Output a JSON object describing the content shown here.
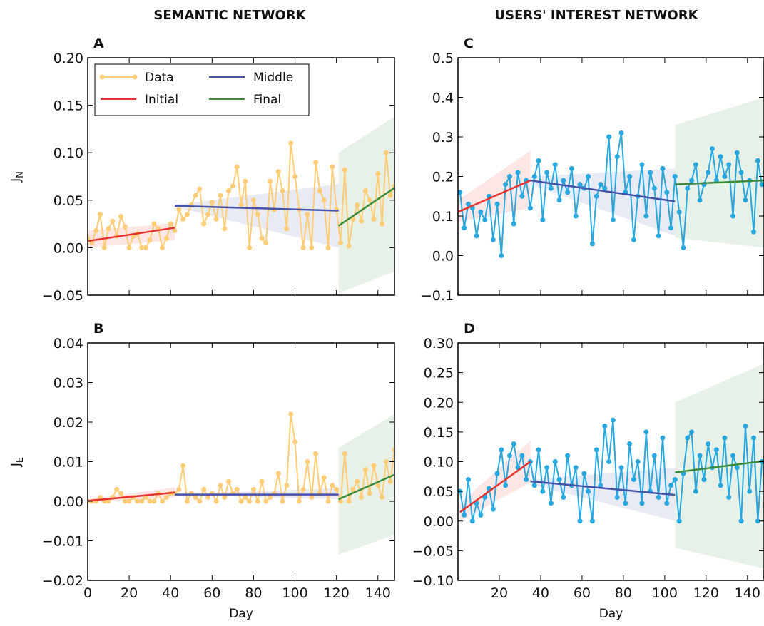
{
  "column_titles": [
    "SEMANTIC NETWORK",
    "USERS' INTEREST NETWORK"
  ],
  "legend": [
    {
      "label": "Data",
      "color": "#ffcc77",
      "marker": true
    },
    {
      "label": "Initial",
      "color": "#e8332f"
    },
    {
      "label": "Middle",
      "color": "#4452a8"
    },
    {
      "label": "Final",
      "color": "#3a8c3a"
    }
  ],
  "chart_data": [
    {
      "panel": "A",
      "type": "line",
      "ylabel": "J",
      "ylabel_sub": "N",
      "xlabel": "",
      "xlim": [
        0,
        148
      ],
      "ylim": [
        -0.05,
        0.2
      ],
      "yticks": [
        -0.05,
        0.0,
        0.05,
        0.1,
        0.15,
        0.2
      ],
      "ytick_labels": [
        "−0.05",
        "0.00",
        "0.05",
        "0.10",
        "0.15",
        "0.20"
      ],
      "xticks": [
        0,
        20,
        40,
        60,
        80,
        100,
        120,
        140
      ],
      "xtick_labels": [
        "",
        "",
        "",
        "",
        "",
        "",
        "",
        ""
      ],
      "data_color": "#ffcc77",
      "data": {
        "x": [
          0,
          2,
          4,
          6,
          8,
          10,
          12,
          14,
          16,
          18,
          20,
          22,
          24,
          26,
          28,
          30,
          32,
          34,
          36,
          38,
          40,
          42,
          44,
          46,
          48,
          50,
          52,
          54,
          56,
          58,
          60,
          62,
          64,
          66,
          68,
          70,
          72,
          74,
          76,
          78,
          80,
          82,
          84,
          86,
          88,
          90,
          92,
          94,
          96,
          98,
          100,
          102,
          104,
          106,
          108,
          110,
          112,
          114,
          116,
          118,
          120,
          122,
          124,
          126,
          128,
          130,
          132,
          134,
          136,
          138,
          140,
          142,
          144,
          146,
          148
        ],
        "y": [
          0.01,
          0.005,
          0.018,
          0.035,
          0.0,
          0.02,
          0.028,
          0.012,
          0.033,
          0.022,
          0.0,
          0.012,
          0.015,
          0.0,
          0.0,
          0.008,
          0.025,
          0.02,
          0.0,
          0.01,
          0.025,
          0.018,
          0.04,
          0.03,
          0.035,
          0.045,
          0.055,
          0.062,
          0.025,
          0.035,
          0.048,
          0.03,
          0.055,
          0.02,
          0.06,
          0.065,
          0.085,
          0.045,
          0.07,
          0.0,
          0.05,
          0.035,
          0.01,
          0.005,
          0.07,
          0.04,
          0.08,
          0.06,
          0.02,
          0.11,
          0.075,
          0.04,
          0.0,
          0.035,
          0.0,
          0.09,
          0.06,
          0.05,
          0.0,
          0.085,
          0.04,
          0.005,
          0.082,
          0.002,
          0.03,
          0.045,
          0.028,
          0.06,
          0.05,
          0.03,
          0.078,
          0.025,
          0.1,
          0.055,
          0.065
        ]
      },
      "segments": [
        {
          "name": "Initial",
          "color": "#e8332f",
          "x": [
            0,
            42
          ],
          "y": [
            0.007,
            0.021
          ],
          "band_upper": [
            0.018,
            0.026
          ],
          "band_lower": [
            0.0,
            0.008
          ]
        },
        {
          "name": "Middle",
          "color": "#4452a8",
          "x": [
            42,
            121
          ],
          "y": [
            0.044,
            0.039
          ],
          "band_upper": [
            0.045,
            0.067
          ],
          "band_lower": [
            0.043,
            0.0
          ]
        },
        {
          "name": "Final",
          "color": "#3a8c3a",
          "x": [
            121,
            148
          ],
          "y": [
            0.023,
            0.063
          ],
          "band_upper": [
            0.1,
            0.138
          ],
          "band_lower": [
            -0.048,
            -0.025
          ]
        }
      ]
    },
    {
      "panel": "B",
      "type": "line",
      "ylabel": "J",
      "ylabel_sub": "E",
      "xlabel": "Day",
      "xlim": [
        0,
        148
      ],
      "ylim": [
        -0.02,
        0.04
      ],
      "yticks": [
        -0.02,
        -0.01,
        0.0,
        0.01,
        0.02,
        0.03,
        0.04
      ],
      "ytick_labels": [
        "−0.02",
        "−0.01",
        "0.00",
        "0.01",
        "0.02",
        "0.03",
        "0.04"
      ],
      "xticks": [
        0,
        20,
        40,
        60,
        80,
        100,
        120,
        140
      ],
      "xtick_labels": [
        "0",
        "20",
        "40",
        "60",
        "80",
        "100",
        "120",
        "140"
      ],
      "data_color": "#ffcc77",
      "data": {
        "x": [
          0,
          2,
          4,
          6,
          8,
          10,
          12,
          14,
          16,
          18,
          20,
          22,
          24,
          26,
          28,
          30,
          32,
          34,
          36,
          38,
          40,
          42,
          44,
          46,
          48,
          50,
          52,
          54,
          56,
          58,
          60,
          62,
          64,
          66,
          68,
          70,
          72,
          74,
          76,
          78,
          80,
          82,
          84,
          86,
          88,
          90,
          92,
          94,
          96,
          98,
          100,
          102,
          104,
          106,
          108,
          110,
          112,
          114,
          116,
          118,
          120,
          122,
          124,
          126,
          128,
          130,
          132,
          134,
          136,
          138,
          140,
          142,
          144,
          146,
          148
        ],
        "y": [
          0.0,
          0.0,
          0.0,
          0.001,
          0.0,
          0.0,
          0.001,
          0.003,
          0.002,
          0.0,
          0.0,
          0.001,
          0.0,
          0.0,
          0.001,
          0.0,
          0.0,
          0.002,
          0.0,
          0.001,
          0.002,
          0.002,
          0.003,
          0.009,
          0.0,
          0.002,
          0.001,
          0.0,
          0.003,
          0.001,
          0.002,
          0.0,
          0.004,
          0.001,
          0.005,
          0.002,
          0.003,
          0.0,
          0.001,
          0.0,
          0.003,
          0.0,
          0.005,
          0.0,
          0.001,
          0.002,
          0.007,
          0.0,
          0.004,
          0.022,
          0.015,
          0.0,
          0.003,
          0.01,
          0.001,
          0.012,
          0.002,
          0.006,
          0.0,
          0.004,
          0.003,
          0.0,
          0.012,
          0.0,
          0.003,
          0.005,
          0.001,
          0.008,
          0.002,
          0.009,
          0.004,
          0.001,
          0.01,
          0.005,
          0.013
        ]
      },
      "segments": [
        {
          "name": "Initial",
          "color": "#e8332f",
          "x": [
            0,
            42
          ],
          "y": [
            0.0001,
            0.0022
          ],
          "band_upper": [
            0.0005,
            0.0035
          ],
          "band_lower": [
            -0.0003,
            0.001
          ]
        },
        {
          "name": "Middle",
          "color": "#4452a8",
          "x": [
            42,
            121
          ],
          "y": [
            0.0017,
            0.0017
          ],
          "band_upper": [
            0.0018,
            0.0033
          ],
          "band_lower": [
            0.0016,
            0.0005
          ]
        },
        {
          "name": "Final",
          "color": "#3a8c3a",
          "x": [
            121,
            148
          ],
          "y": [
            0.0005,
            0.0067
          ],
          "band_upper": [
            0.0135,
            0.022
          ],
          "band_lower": [
            -0.0135,
            -0.0085
          ]
        }
      ]
    },
    {
      "panel": "C",
      "type": "line",
      "ylabel": "",
      "ylabel_sub": "",
      "xlabel": "",
      "xlim": [
        0,
        148
      ],
      "ylim": [
        -0.1,
        0.5
      ],
      "yticks": [
        -0.1,
        0.0,
        0.1,
        0.2,
        0.3,
        0.4,
        0.5
      ],
      "ytick_labels": [
        "−0.1",
        "0.0",
        "0.1",
        "0.2",
        "0.3",
        "0.4",
        "0.5"
      ],
      "xticks": [
        0,
        20,
        40,
        60,
        80,
        100,
        120,
        140
      ],
      "xtick_labels": [
        "",
        "",
        "",
        "",
        "",
        "",
        "",
        ""
      ],
      "data_color": "#29a8df",
      "data": {
        "x": [
          1,
          3,
          5,
          7,
          9,
          11,
          13,
          15,
          17,
          19,
          21,
          23,
          25,
          27,
          29,
          31,
          33,
          35,
          37,
          39,
          41,
          43,
          45,
          47,
          49,
          51,
          53,
          55,
          57,
          59,
          61,
          63,
          65,
          67,
          69,
          71,
          73,
          75,
          77,
          79,
          81,
          83,
          85,
          87,
          89,
          91,
          93,
          95,
          97,
          99,
          101,
          103,
          105,
          107,
          109,
          111,
          113,
          115,
          117,
          119,
          121,
          123,
          125,
          127,
          129,
          131,
          133,
          135,
          137,
          139,
          141,
          143,
          145,
          147
        ],
        "y": [
          0.16,
          0.07,
          0.13,
          0.12,
          0.05,
          0.11,
          0.09,
          0.15,
          0.04,
          0.13,
          0.0,
          0.18,
          0.2,
          0.08,
          0.21,
          0.15,
          0.19,
          0.12,
          0.2,
          0.24,
          0.09,
          0.21,
          0.17,
          0.23,
          0.14,
          0.19,
          0.16,
          0.22,
          0.1,
          0.18,
          0.17,
          0.2,
          0.03,
          0.15,
          0.18,
          0.17,
          0.3,
          0.09,
          0.25,
          0.31,
          0.16,
          0.2,
          0.04,
          0.15,
          0.23,
          0.1,
          0.21,
          0.17,
          0.05,
          0.22,
          0.16,
          0.07,
          0.2,
          0.11,
          0.02,
          0.17,
          0.19,
          0.23,
          0.14,
          0.18,
          0.21,
          0.27,
          0.19,
          0.25,
          0.2,
          0.23,
          0.1,
          0.26,
          0.21,
          0.14,
          0.19,
          0.06,
          0.24,
          0.18
        ]
      },
      "segments": [
        {
          "name": "Initial",
          "color": "#e8332f",
          "x": [
            0,
            35
          ],
          "y": [
            0.11,
            0.19
          ],
          "band_upper": [
            0.14,
            0.265
          ],
          "band_lower": [
            0.085,
            0.12
          ]
        },
        {
          "name": "Middle",
          "color": "#4452a8",
          "x": [
            35,
            105
          ],
          "y": [
            0.19,
            0.137
          ],
          "band_upper": [
            0.2,
            0.22
          ],
          "band_lower": [
            0.18,
            0.05
          ]
        },
        {
          "name": "Final",
          "color": "#3a8c3a",
          "x": [
            105,
            148
          ],
          "y": [
            0.18,
            0.19
          ],
          "band_upper": [
            0.33,
            0.4
          ],
          "band_lower": [
            0.045,
            0.02
          ]
        }
      ]
    },
    {
      "panel": "D",
      "type": "line",
      "ylabel": "",
      "ylabel_sub": "",
      "xlabel": "Day",
      "xlim": [
        0,
        148
      ],
      "ylim": [
        -0.1,
        0.3
      ],
      "yticks": [
        -0.1,
        -0.05,
        0.0,
        0.05,
        0.1,
        0.15,
        0.2,
        0.25,
        0.3
      ],
      "ytick_labels": [
        "−0.10",
        "−0.05",
        "0.00",
        "0.05",
        "0.10",
        "0.15",
        "0.20",
        "0.25",
        "0.30"
      ],
      "xticks": [
        20,
        40,
        60,
        80,
        100,
        120,
        140
      ],
      "xtick_labels": [
        "20",
        "40",
        "60",
        "80",
        "100",
        "120",
        "140"
      ],
      "data_color": "#29a8df",
      "data": {
        "x": [
          1,
          3,
          5,
          7,
          9,
          11,
          13,
          15,
          17,
          19,
          21,
          23,
          25,
          27,
          29,
          31,
          33,
          35,
          37,
          39,
          41,
          43,
          45,
          47,
          49,
          51,
          53,
          55,
          57,
          59,
          61,
          63,
          65,
          67,
          69,
          71,
          73,
          75,
          77,
          79,
          81,
          83,
          85,
          87,
          89,
          91,
          93,
          95,
          97,
          99,
          101,
          103,
          105,
          107,
          109,
          111,
          113,
          115,
          117,
          119,
          121,
          123,
          125,
          127,
          129,
          131,
          133,
          135,
          137,
          139,
          141,
          143,
          145,
          147
        ],
        "y": [
          0.05,
          0.01,
          0.07,
          0.0,
          0.03,
          0.01,
          0.04,
          0.055,
          0.02,
          0.08,
          0.12,
          0.06,
          0.11,
          0.13,
          0.09,
          0.11,
          0.07,
          0.1,
          0.06,
          0.12,
          0.05,
          0.09,
          0.03,
          0.1,
          0.07,
          0.04,
          0.11,
          0.06,
          0.09,
          0.0,
          0.08,
          0.05,
          0.0,
          0.12,
          0.06,
          0.16,
          0.1,
          0.17,
          0.04,
          0.09,
          0.03,
          0.13,
          0.07,
          0.1,
          0.03,
          0.15,
          0.05,
          0.11,
          0.04,
          0.14,
          0.03,
          0.06,
          0.07,
          0.0,
          0.08,
          0.14,
          0.15,
          0.05,
          0.11,
          0.07,
          0.13,
          0.09,
          0.12,
          0.06,
          0.14,
          0.04,
          0.11,
          0.09,
          0.0,
          0.16,
          0.05,
          0.14,
          0.0,
          0.1
        ]
      },
      "segments": [
        {
          "name": "Initial",
          "color": "#e8332f",
          "x": [
            1,
            35
          ],
          "y": [
            0.015,
            0.1
          ],
          "band_upper": [
            0.03,
            0.135
          ],
          "band_lower": [
            0.0,
            0.065
          ]
        },
        {
          "name": "Middle",
          "color": "#4452a8",
          "x": [
            35,
            105
          ],
          "y": [
            0.067,
            0.044
          ],
          "band_upper": [
            0.07,
            0.09
          ],
          "band_lower": [
            0.062,
            0.0
          ]
        },
        {
          "name": "Final",
          "color": "#3a8c3a",
          "x": [
            105,
            148
          ],
          "y": [
            0.082,
            0.101
          ],
          "band_upper": [
            0.2,
            0.265
          ],
          "band_lower": [
            -0.045,
            -0.08
          ]
        }
      ]
    }
  ]
}
